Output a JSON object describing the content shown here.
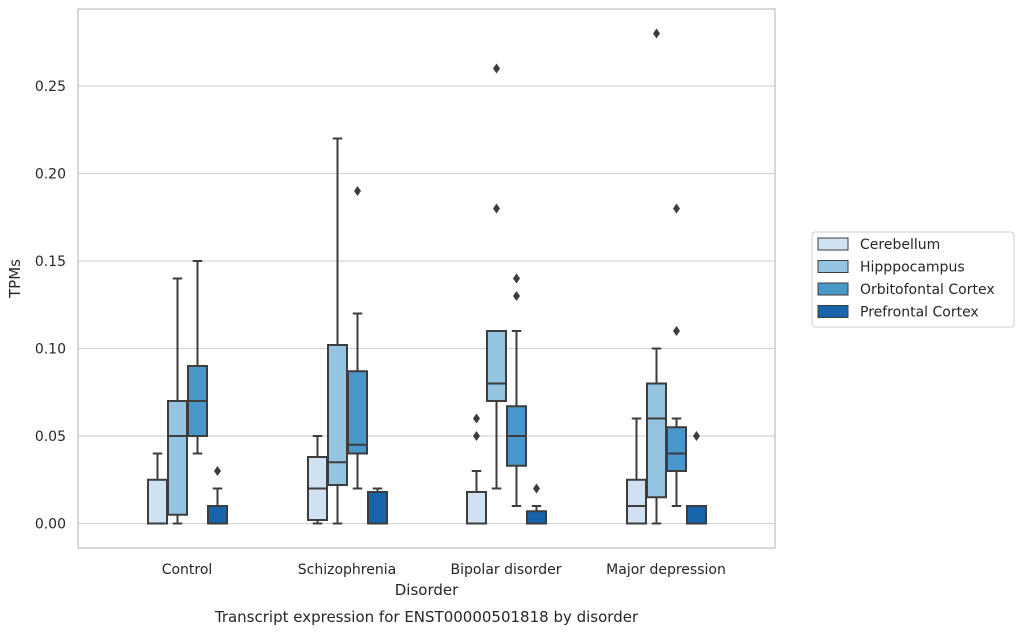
{
  "chart_data": {
    "type": "box",
    "title": "",
    "caption": "Transcript expression for ENST00000501818 by disorder",
    "xlabel": "Disorder",
    "ylabel": "TPMs",
    "ylim": [
      -0.014,
      0.294
    ],
    "yticks": [
      0.0,
      0.05,
      0.1,
      0.15,
      0.2,
      0.25
    ],
    "ytick_labels": [
      "0.00",
      "0.05",
      "0.10",
      "0.15",
      "0.20",
      "0.25"
    ],
    "grid": true,
    "legend_position": "right",
    "categories": [
      "Control",
      "Schizophrenia",
      "Bipolar disorder",
      "Major depression"
    ],
    "series": [
      {
        "name": "Cerebellum",
        "color": "#d0e1f2",
        "boxes": [
          {
            "whisker_low": 0.0,
            "q1": 0.0,
            "median": 0.0,
            "q3": 0.025,
            "whisker_high": 0.04,
            "outliers": []
          },
          {
            "whisker_low": 0.0,
            "q1": 0.002,
            "median": 0.02,
            "q3": 0.038,
            "whisker_high": 0.05,
            "outliers": []
          },
          {
            "whisker_low": 0.0,
            "q1": 0.0,
            "median": 0.0,
            "q3": 0.018,
            "whisker_high": 0.03,
            "outliers": [
              0.05,
              0.06
            ]
          },
          {
            "whisker_low": 0.0,
            "q1": 0.0,
            "median": 0.01,
            "q3": 0.025,
            "whisker_high": 0.06,
            "outliers": []
          }
        ]
      },
      {
        "name": "Hipppocampus",
        "color": "#94c4df",
        "boxes": [
          {
            "whisker_low": 0.0,
            "q1": 0.005,
            "median": 0.05,
            "q3": 0.07,
            "whisker_high": 0.14,
            "outliers": []
          },
          {
            "whisker_low": 0.0,
            "q1": 0.022,
            "median": 0.035,
            "q3": 0.102,
            "whisker_high": 0.22,
            "outliers": []
          },
          {
            "whisker_low": 0.02,
            "q1": 0.07,
            "median": 0.08,
            "q3": 0.11,
            "whisker_high": 0.11,
            "outliers": [
              0.18,
              0.26
            ]
          },
          {
            "whisker_low": 0.0,
            "q1": 0.015,
            "median": 0.06,
            "q3": 0.08,
            "whisker_high": 0.1,
            "outliers": [
              0.28
            ]
          }
        ]
      },
      {
        "name": "Orbitofontal Cortex",
        "color": "#4a98c9",
        "boxes": [
          {
            "whisker_low": 0.04,
            "q1": 0.05,
            "median": 0.07,
            "q3": 0.09,
            "whisker_high": 0.15,
            "outliers": []
          },
          {
            "whisker_low": 0.02,
            "q1": 0.04,
            "median": 0.045,
            "q3": 0.087,
            "whisker_high": 0.12,
            "outliers": [
              0.19
            ]
          },
          {
            "whisker_low": 0.01,
            "q1": 0.033,
            "median": 0.05,
            "q3": 0.067,
            "whisker_high": 0.11,
            "outliers": [
              0.13,
              0.14
            ]
          },
          {
            "whisker_low": 0.01,
            "q1": 0.03,
            "median": 0.04,
            "q3": 0.055,
            "whisker_high": 0.06,
            "outliers": [
              0.11,
              0.18
            ]
          }
        ]
      },
      {
        "name": "Prefrontal Cortex",
        "color": "#1764ab",
        "boxes": [
          {
            "whisker_low": 0.0,
            "q1": 0.0,
            "median": 0.0,
            "q3": 0.01,
            "whisker_high": 0.02,
            "outliers": [
              0.03
            ]
          },
          {
            "whisker_low": 0.0,
            "q1": 0.0,
            "median": 0.0,
            "q3": 0.018,
            "whisker_high": 0.02,
            "outliers": []
          },
          {
            "whisker_low": 0.0,
            "q1": 0.0,
            "median": 0.0,
            "q3": 0.007,
            "whisker_high": 0.01,
            "outliers": [
              0.02
            ]
          },
          {
            "whisker_low": 0.0,
            "q1": 0.0,
            "median": 0.0,
            "q3": 0.01,
            "whisker_high": 0.01,
            "outliers": [
              0.05
            ]
          }
        ]
      }
    ]
  },
  "colors": {
    "grid": "#d5d5d5",
    "frame": "#cccccc",
    "box_edge": "#3d3d3d",
    "text": "#262626"
  }
}
